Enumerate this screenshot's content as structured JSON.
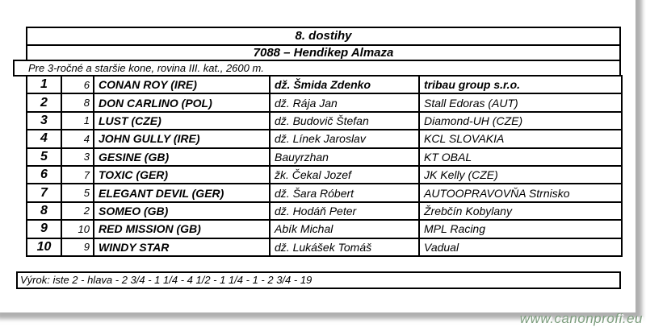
{
  "race": {
    "title": "8. dostihy",
    "subtitle": "7088 – Hendikep Almaza",
    "conditions": "Pre 3-ročné a staršie kone, rovina III. kat., 2600 m.",
    "verdict": "Výrok: iste 2 - hlava - 2 3/4 - 1 1/4 - 4 1/2 - 1 1/4 - 1 - 2 3/4 - 19"
  },
  "results": [
    {
      "place": "1",
      "number": "6",
      "horse": "CONAN ROY (IRE)",
      "rider": "dž. Šmida Zdenko",
      "owner": "tribau group s.r.o.",
      "emphasis": true
    },
    {
      "place": "2",
      "number": "8",
      "horse": "DON CARLINO (POL)",
      "rider": "dž. Rája Jan",
      "owner": "Stall Edoras (AUT)",
      "emphasis": false
    },
    {
      "place": "3",
      "number": "1",
      "horse": "LUST (CZE)",
      "rider": "dž. Budovič Štefan",
      "owner": "Diamond-UH (CZE)",
      "emphasis": false
    },
    {
      "place": "4",
      "number": "4",
      "horse": "JOHN GULLY (IRE)",
      "rider": "dž. Línek Jaroslav",
      "owner": "KCL SLOVAKIA",
      "emphasis": false
    },
    {
      "place": "5",
      "number": "3",
      "horse": "GESINE (GB)",
      "rider": "Bauyrzhan",
      "owner": "KT OBAL",
      "emphasis": false
    },
    {
      "place": "6",
      "number": "7",
      "horse": "TOXIC (GER)",
      "rider": "žk. Čekal Jozef",
      "owner": "JK Kelly (CZE)",
      "emphasis": false
    },
    {
      "place": "7",
      "number": "5",
      "horse": "ELEGANT DEVIL (GER)",
      "rider": "dž. Šara Róbert",
      "owner": "AUTOOPRAVOVŇA Strnisko",
      "emphasis": false
    },
    {
      "place": "8",
      "number": "2",
      "horse": "SOMEO (GB)",
      "rider": "dž. Hodáň Peter",
      "owner": "Žrebčín Kobylany",
      "emphasis": false
    },
    {
      "place": "9",
      "number": "10",
      "horse": "RED MISSION (GB)",
      "rider": "Abík Michal",
      "owner": "MPL Racing",
      "emphasis": false
    },
    {
      "place": "10",
      "number": "9",
      "horse": "WINDY STAR",
      "rider": "dž. Lukášek Tomáš",
      "owner": "Vadual",
      "emphasis": false
    }
  ],
  "footer": {
    "watermark": "www.canonprofi.eu"
  },
  "colors": {
    "border": "#000000",
    "watermark": "#7e9e7f",
    "page_background": "#ffffff"
  }
}
